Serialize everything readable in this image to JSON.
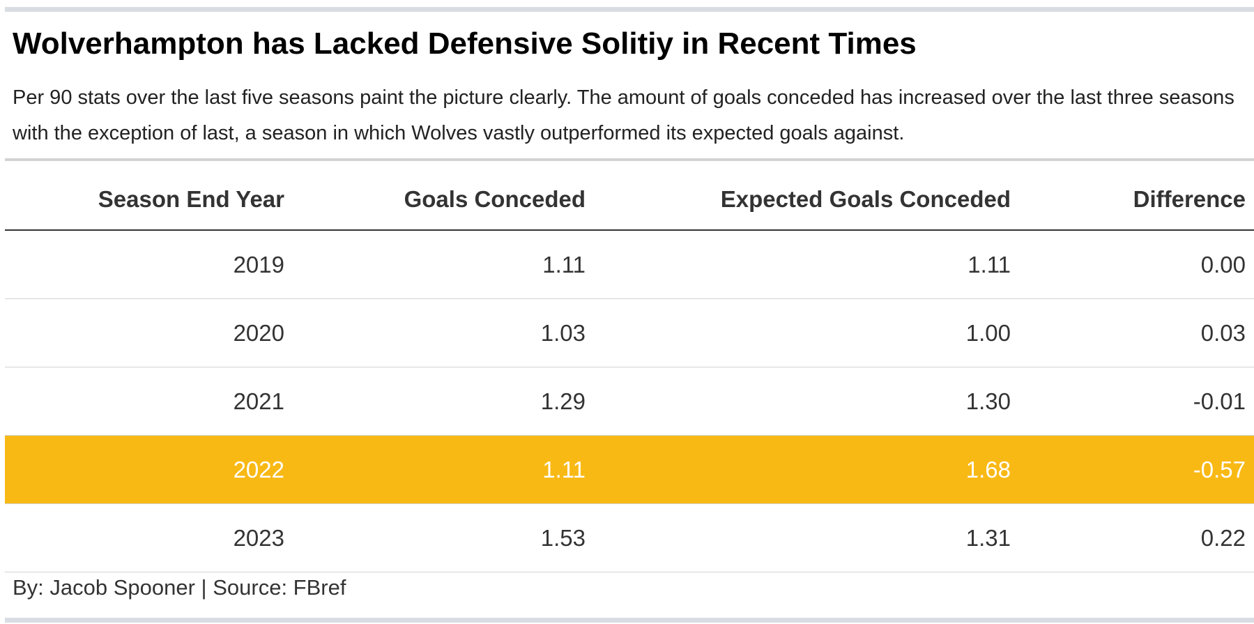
{
  "header": {
    "title": "Wolverhampton has Lacked Defensive Solitiy in Recent Times",
    "subtitle": "Per 90 stats over the last five seasons paint the picture clearly. The amount of goals conceded has increased over the last three seasons with the exception of last, a season in which Wolves vastly outperformed its expected goals against."
  },
  "footer": {
    "credit": "By: Jacob Spooner | Source: FBref"
  },
  "colors": {
    "highlight": "#f9b915",
    "rule": "#d9dde3"
  },
  "chart_data": {
    "type": "table",
    "title": "Wolverhampton has Lacked Defensive Solitiy in Recent Times",
    "columns": [
      "Season End Year",
      "Goals Conceded",
      "Expected Goals Conceded",
      "Difference"
    ],
    "rows": [
      [
        "2019",
        "1.11",
        "1.11",
        "0.00"
      ],
      [
        "2020",
        "1.03",
        "1.00",
        "0.03"
      ],
      [
        "2021",
        "1.29",
        "1.30",
        "-0.01"
      ],
      [
        "2022",
        "1.11",
        "1.68",
        "-0.57"
      ],
      [
        "2023",
        "1.53",
        "1.31",
        "0.22"
      ]
    ],
    "highlighted_row": "2022"
  }
}
